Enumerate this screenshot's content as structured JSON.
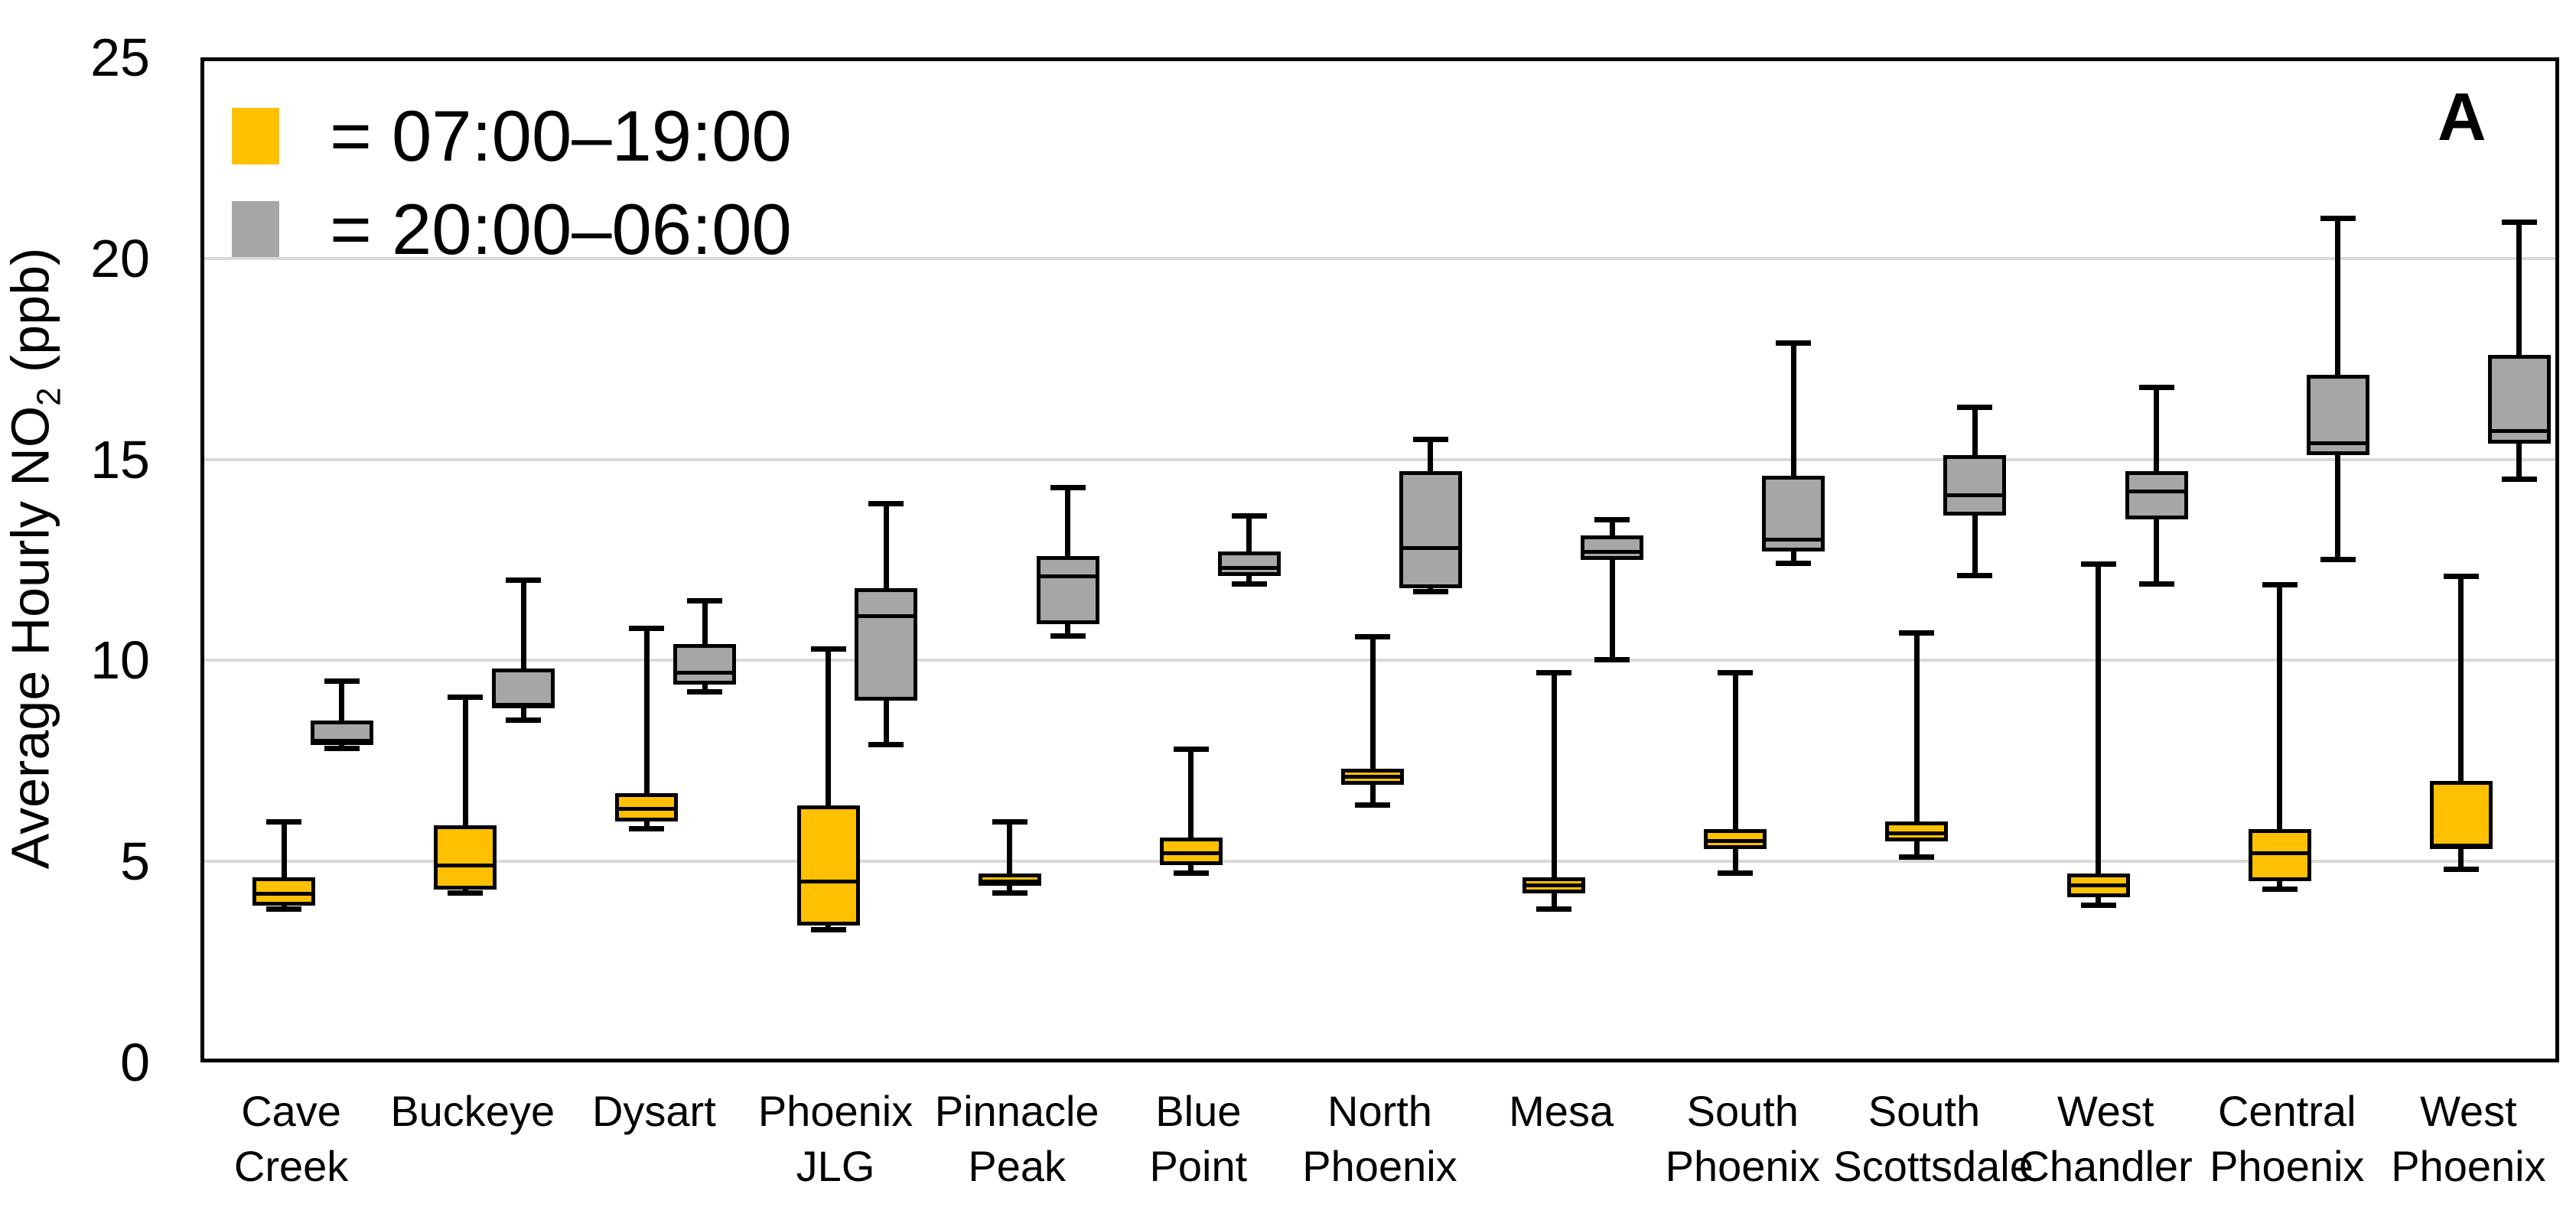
{
  "chart_data": {
    "type": "boxplot",
    "panel_label": "A",
    "ylabel": {
      "prefix": "Average Hourly NO",
      "sub": "2",
      "suffix": " (ppb)"
    },
    "xlabel": "",
    "ylim": [
      0,
      25
    ],
    "yticks": [
      0,
      5,
      10,
      15,
      20,
      25
    ],
    "grid_values": [
      5,
      10,
      15,
      20
    ],
    "grid": "horizontal",
    "legend_position": "top-left",
    "legend": [
      {
        "series": "day",
        "label": "= 07:00–19:00",
        "color": "#FFC000"
      },
      {
        "series": "night",
        "label": "= 20:00–06:00",
        "color": "#A6A6A6"
      }
    ],
    "colors": {
      "day": "#FFC000",
      "night": "#A6A6A6",
      "grid": "#D9D9D9",
      "frame": "#000000"
    },
    "stat_order": [
      "min",
      "q1",
      "median",
      "q3",
      "max"
    ],
    "sites": [
      {
        "name": "Cave Creek",
        "lines": [
          "Cave",
          "Creek"
        ],
        "day": {
          "min": 3.8,
          "q1": 3.9,
          "median": 4.2,
          "q3": 4.6,
          "max": 6.0
        },
        "night": {
          "min": 7.8,
          "q1": 7.9,
          "median": 8.0,
          "q3": 8.5,
          "max": 9.5
        }
      },
      {
        "name": "Buckeye",
        "lines": [
          "Buckeye"
        ],
        "day": {
          "min": 4.2,
          "q1": 4.3,
          "median": 4.9,
          "q3": 5.9,
          "max": 9.1
        },
        "night": {
          "min": 8.5,
          "q1": 8.8,
          "median": 8.9,
          "q3": 9.8,
          "max": 12.0
        }
      },
      {
        "name": "Dysart",
        "lines": [
          "Dysart"
        ],
        "day": {
          "min": 5.8,
          "q1": 6.0,
          "median": 6.3,
          "q3": 6.7,
          "max": 10.8
        },
        "night": {
          "min": 9.2,
          "q1": 9.4,
          "median": 9.7,
          "q3": 10.4,
          "max": 11.5
        }
      },
      {
        "name": "Phoenix JLG",
        "lines": [
          "Phoenix",
          "JLG"
        ],
        "day": {
          "min": 3.3,
          "q1": 3.4,
          "median": 4.5,
          "q3": 6.4,
          "max": 10.3
        },
        "night": {
          "min": 7.9,
          "q1": 9.0,
          "median": 11.1,
          "q3": 11.8,
          "max": 13.9
        }
      },
      {
        "name": "Pinnacle Peak",
        "lines": [
          "Pinnacle",
          "Peak"
        ],
        "day": {
          "min": 4.2,
          "q1": 4.4,
          "median": 4.5,
          "q3": 4.7,
          "max": 6.0
        },
        "night": {
          "min": 10.6,
          "q1": 10.9,
          "median": 12.1,
          "q3": 12.6,
          "max": 14.3
        }
      },
      {
        "name": "Blue Point",
        "lines": [
          "Blue",
          "Point"
        ],
        "day": {
          "min": 4.7,
          "q1": 4.9,
          "median": 5.2,
          "q3": 5.6,
          "max": 7.8
        },
        "night": {
          "min": 11.9,
          "q1": 12.1,
          "median": 12.3,
          "q3": 12.7,
          "max": 13.6
        }
      },
      {
        "name": "North Phoenix",
        "lines": [
          "North",
          "Phoenix"
        ],
        "day": {
          "min": 6.4,
          "q1": 6.9,
          "median": 7.1,
          "q3": 7.3,
          "max": 10.6
        },
        "night": {
          "min": 11.7,
          "q1": 11.8,
          "median": 12.8,
          "q3": 14.7,
          "max": 15.5
        }
      },
      {
        "name": "Mesa",
        "lines": [
          "Mesa"
        ],
        "day": {
          "min": 3.8,
          "q1": 4.2,
          "median": 4.4,
          "q3": 4.6,
          "max": 9.7
        },
        "night": {
          "min": 10.0,
          "q1": 12.5,
          "median": 12.7,
          "q3": 13.1,
          "max": 13.5
        }
      },
      {
        "name": "South Phoenix",
        "lines": [
          "South",
          "Phoenix"
        ],
        "day": {
          "min": 4.7,
          "q1": 5.3,
          "median": 5.5,
          "q3": 5.8,
          "max": 9.7
        },
        "night": {
          "min": 12.4,
          "q1": 12.7,
          "median": 13.0,
          "q3": 14.6,
          "max": 17.9
        }
      },
      {
        "name": "South Scottsdale",
        "lines": [
          "South",
          "Scottsdale"
        ],
        "day": {
          "min": 5.1,
          "q1": 5.5,
          "median": 5.7,
          "q3": 6.0,
          "max": 10.7
        },
        "night": {
          "min": 12.1,
          "q1": 13.6,
          "median": 14.1,
          "q3": 15.1,
          "max": 16.3
        }
      },
      {
        "name": "West Chandler",
        "lines": [
          "West",
          "Chandler"
        ],
        "day": {
          "min": 3.9,
          "q1": 4.1,
          "median": 4.4,
          "q3": 4.7,
          "max": 12.4
        },
        "night": {
          "min": 11.9,
          "q1": 13.5,
          "median": 14.2,
          "q3": 14.7,
          "max": 16.8
        }
      },
      {
        "name": "Central Phoenix",
        "lines": [
          "Central",
          "Phoenix"
        ],
        "day": {
          "min": 4.3,
          "q1": 4.5,
          "median": 5.2,
          "q3": 5.8,
          "max": 11.9
        },
        "night": {
          "min": 12.5,
          "q1": 15.1,
          "median": 15.4,
          "q3": 17.1,
          "max": 21.0
        }
      },
      {
        "name": "West Phoenix",
        "lines": [
          "West",
          "Phoenix"
        ],
        "day": {
          "min": 4.8,
          "q1": 5.3,
          "median": 5.4,
          "q3": 7.0,
          "max": 12.1
        },
        "night": {
          "min": 14.5,
          "q1": 15.4,
          "median": 15.7,
          "q3": 17.6,
          "max": 20.9
        }
      }
    ]
  }
}
